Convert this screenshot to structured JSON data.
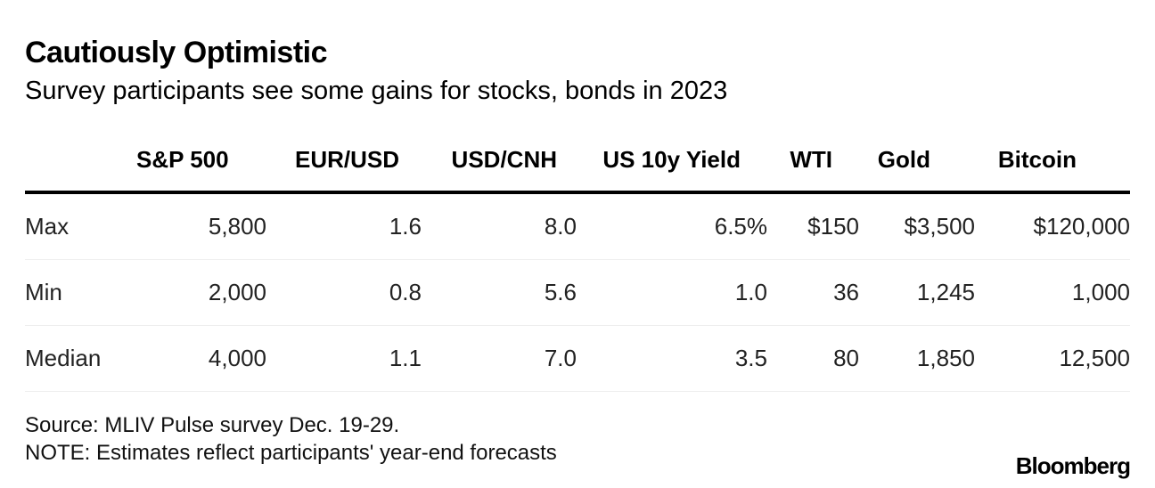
{
  "chart_data": {
    "type": "table",
    "title": "Cautiously Optimistic",
    "subtitle": "Survey participants see some gains for stocks, bonds in 2023",
    "columns": [
      "",
      "S&P 500",
      "EUR/USD",
      "USD/CNH",
      "US 10y Yield",
      "WTI",
      "Gold",
      "Bitcoin"
    ],
    "rows": [
      {
        "label": "Max",
        "values": [
          "5,800",
          "1.6",
          "8.0",
          "6.5%",
          "$150",
          "$3,500",
          "$120,000"
        ]
      },
      {
        "label": "Min",
        "values": [
          "2,000",
          "0.8",
          "5.6",
          "1.0",
          "36",
          "1,245",
          "1,000"
        ]
      },
      {
        "label": "Median",
        "values": [
          "4,000",
          "1.1",
          "7.0",
          "3.5",
          "80",
          "1,850",
          "12,500"
        ]
      }
    ]
  },
  "footer": {
    "source": "Source: MLIV Pulse survey Dec. 19-29.",
    "note": "NOTE: Estimates reflect participants' year-end forecasts",
    "logo": "Bloomberg"
  }
}
